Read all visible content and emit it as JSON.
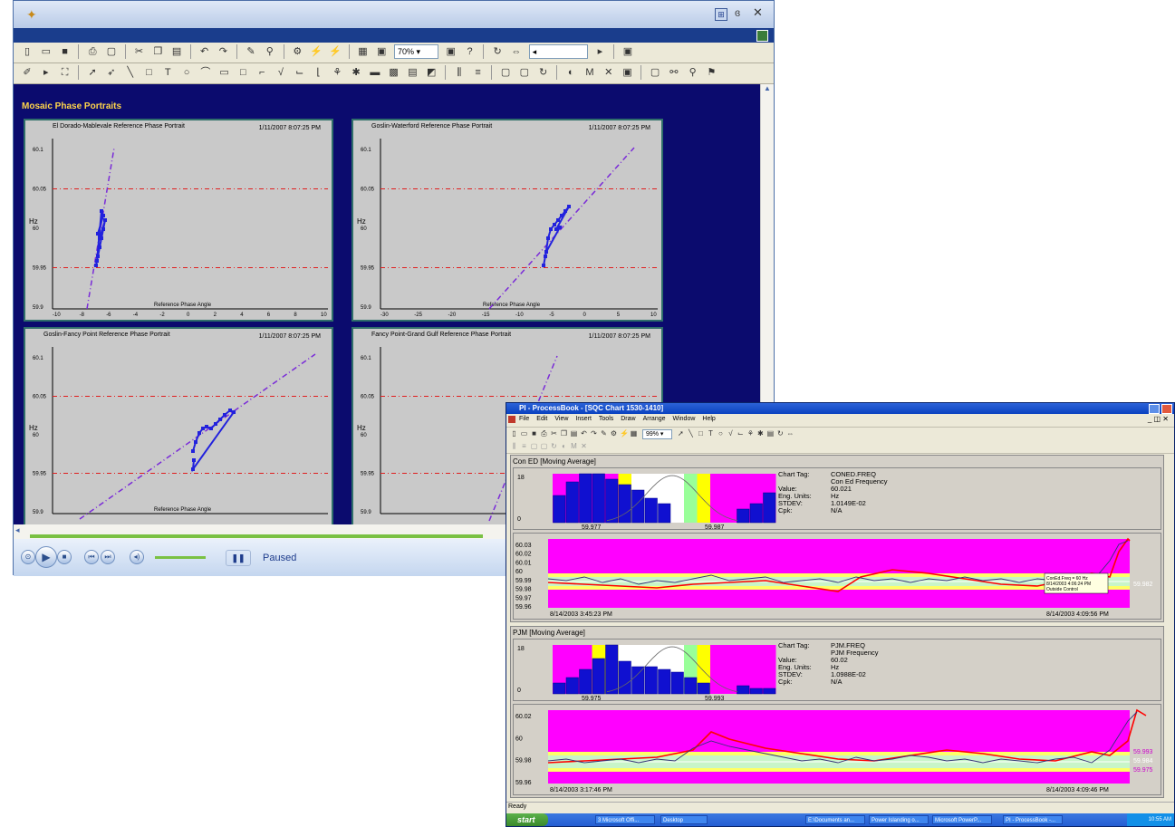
{
  "back_window": {
    "zoom": "70%",
    "panel_title": "Mosaic Phase Portraits",
    "player": {
      "status": "Paused"
    },
    "plots": [
      {
        "title": "El Dorado-Mablevale Reference Phase Portrait",
        "date": "1/11/2007 8:07:25 PM",
        "xlabel": "Reference Phase Angle",
        "ylabel": "Hz",
        "xticks": [
          "-10",
          "-8",
          "-6",
          "-4",
          "-2",
          "0",
          "2",
          "4",
          "6",
          "8",
          "10"
        ],
        "yticks": [
          "60.1",
          "60.05",
          "60",
          "59.95",
          "59.9"
        ]
      },
      {
        "title": "Goslin-Waterford Reference Phase Portrait",
        "date": "1/11/2007 8:07:25 PM",
        "xlabel": "Reference Phase Angle",
        "ylabel": "Hz",
        "xticks": [
          "-30",
          "-25",
          "-20",
          "-15",
          "-10",
          "-5",
          "0",
          "5",
          "10"
        ],
        "yticks": [
          "60.1",
          "60.05",
          "60",
          "59.95",
          "59.9"
        ]
      },
      {
        "title": "Goslin-Fancy Point Reference Phase Portrait",
        "date": "1/11/2007 8:07:25 PM",
        "xlabel": "Reference Phase Angle",
        "ylabel": "Hz",
        "xticks": [],
        "yticks": [
          "60.1",
          "60.05",
          "60",
          "59.95",
          "59.9"
        ]
      },
      {
        "title": "Fancy Point-Grand Gulf Reference Phase Portrait",
        "date": "1/11/2007 8:07:25 PM",
        "xlabel": "Referen",
        "ylabel": "Hz",
        "xticks": [],
        "yticks": [
          "60.1",
          "60.05",
          "60",
          "59.95",
          "59.9"
        ]
      }
    ]
  },
  "front_window": {
    "title": "PI - ProcessBook - [SQC Chart 1530-1410]",
    "menu": [
      "File",
      "Edit",
      "View",
      "Insert",
      "Tools",
      "Draw",
      "Arrange",
      "Window",
      "Help"
    ],
    "zoom": "99%",
    "status": "Ready",
    "sections": [
      {
        "label": "Con ED  [Moving Average]",
        "hist_ymax": "18",
        "hist_ymin": "0",
        "hist_xleft": "59.977",
        "hist_xright": "59.987",
        "info_labels": [
          "Chart Tag:",
          "",
          "Value:",
          "Eng. Units:",
          "STDEV:",
          "Cpk:"
        ],
        "info_values": [
          "CONED.FREQ",
          "Con Ed Frequency",
          "60.021",
          "Hz",
          "1.0149E-02",
          "N/A"
        ],
        "trend_yticks": [
          "60.03",
          "60.02",
          "60.01",
          "60",
          "59.99",
          "59.98",
          "59.97",
          "59.96"
        ],
        "trend_start": "8/14/2003 3:45:23 PM",
        "trend_end": "8/14/2003 4:09:56 PM",
        "right_label": "59.982",
        "tooltip": [
          "ConEd.Freq = 60 Hz",
          "8/14/2003 4:06:24 PM",
          "Outside Control"
        ]
      },
      {
        "label": "PJM  [Moving Average]",
        "hist_ymax": "18",
        "hist_ymin": "0",
        "hist_xleft": "59.975",
        "hist_xright": "59.993",
        "info_labels": [
          "Chart Tag:",
          "",
          "Value:",
          "Eng. Units:",
          "STDEV:",
          "Cpk:"
        ],
        "info_values": [
          "PJM.FREQ",
          "PJM Frequency",
          "60.02",
          "Hz",
          "1.0988E-02",
          "N/A"
        ],
        "trend_yticks": [
          "60.02",
          "60",
          "59.98",
          "59.96"
        ],
        "trend_start": "8/14/2003 3:17:46 PM",
        "trend_end": "8/14/2003 4:09:46 PM",
        "right_labels": [
          "59.993",
          "59.984",
          "59.975"
        ]
      }
    ],
    "taskbar": {
      "start": "start",
      "items": [
        "3 Microsoft Offi...",
        "Desktop",
        "E:\\Documents an...",
        "Power Islanding o...",
        "Microsoft PowerP...",
        "PI - ProcessBook -..."
      ],
      "clock": "10:55 AM"
    }
  },
  "colors": {
    "plot_bg": "#c9c9c9",
    "navy": "#0b0b6e",
    "magenta": "#ff00ff",
    "trend_red": "#ff0000",
    "blue_marker": "#2222dd",
    "purple_line": "#7a2bd8"
  }
}
